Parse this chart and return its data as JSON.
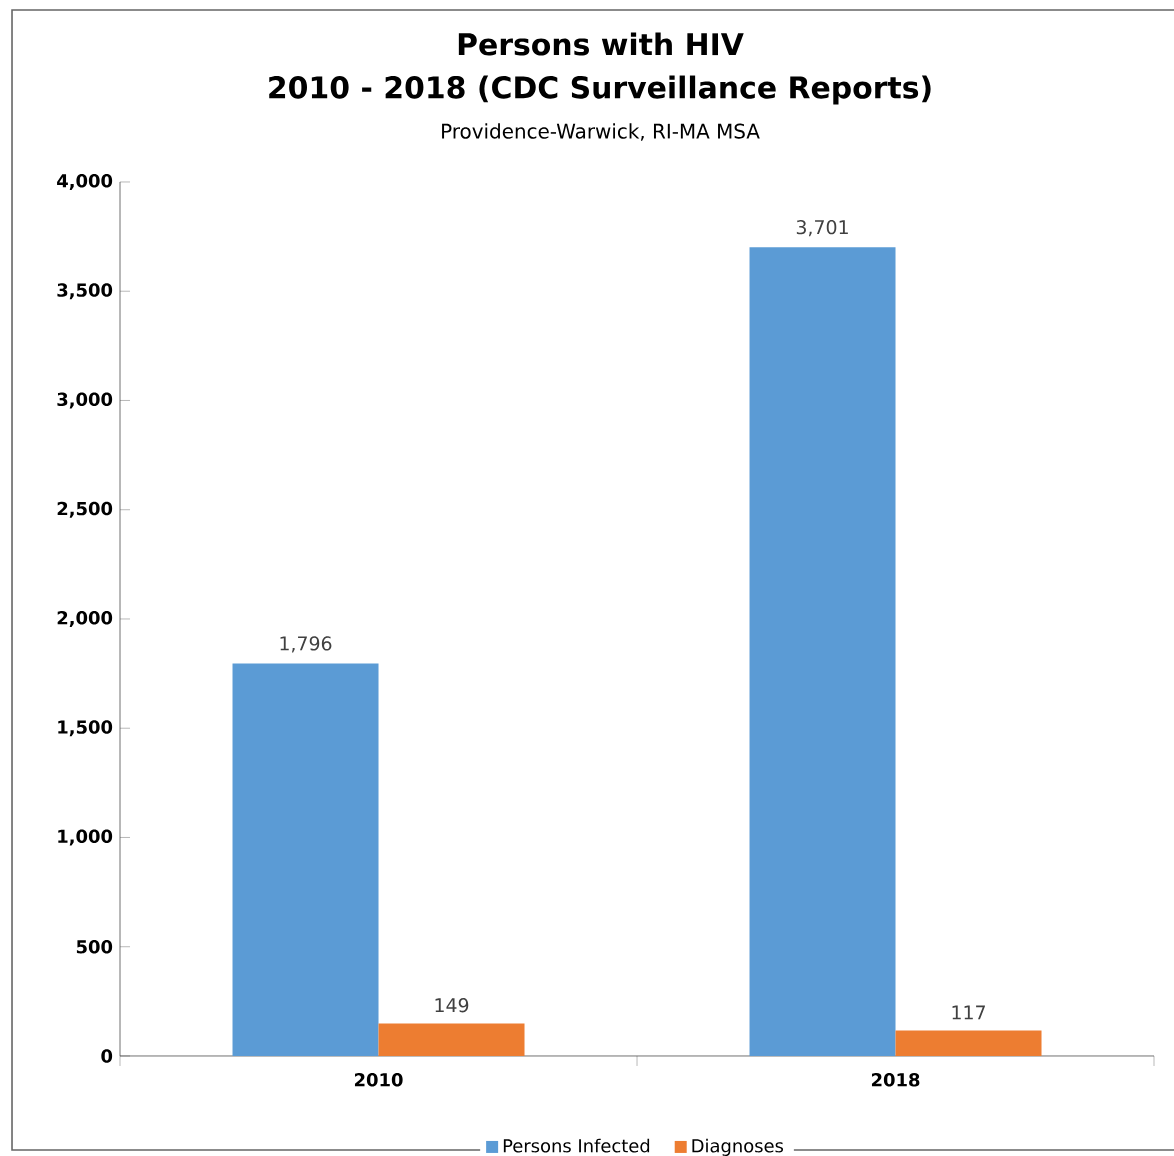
{
  "chart_data": {
    "type": "bar",
    "title": "Persons with HIV",
    "subtitle": "2010 - 2018 (CDC Surveillance Reports)",
    "annotations": [
      "Providence-Warwick, RI-MA MSA"
    ],
    "categories": [
      "2010",
      "2018"
    ],
    "series": [
      {
        "name": "Persons Infected",
        "color": "#5b9bd5",
        "values": [
          1796,
          3701
        ],
        "value_labels": [
          "1,796",
          "3,701"
        ]
      },
      {
        "name": "Diagnoses",
        "color": "#ed7d31",
        "values": [
          149,
          117
        ],
        "value_labels": [
          "149",
          "117"
        ]
      }
    ],
    "ylim": [
      0,
      4000
    ],
    "yticks": [
      0,
      500,
      {
        "value": 1000,
        "label": "1,000"
      },
      {
        "value": 1500,
        "label": "1,500"
      },
      {
        "value": 2000,
        "label": "2,000"
      },
      {
        "value": 2500,
        "label": "2,500"
      },
      {
        "value": 3000,
        "label": "3,000"
      },
      {
        "value": 3500,
        "label": "3,500"
      },
      {
        "value": 4000,
        "label": "4,000"
      }
    ],
    "grid": false,
    "legend": "bottom"
  }
}
